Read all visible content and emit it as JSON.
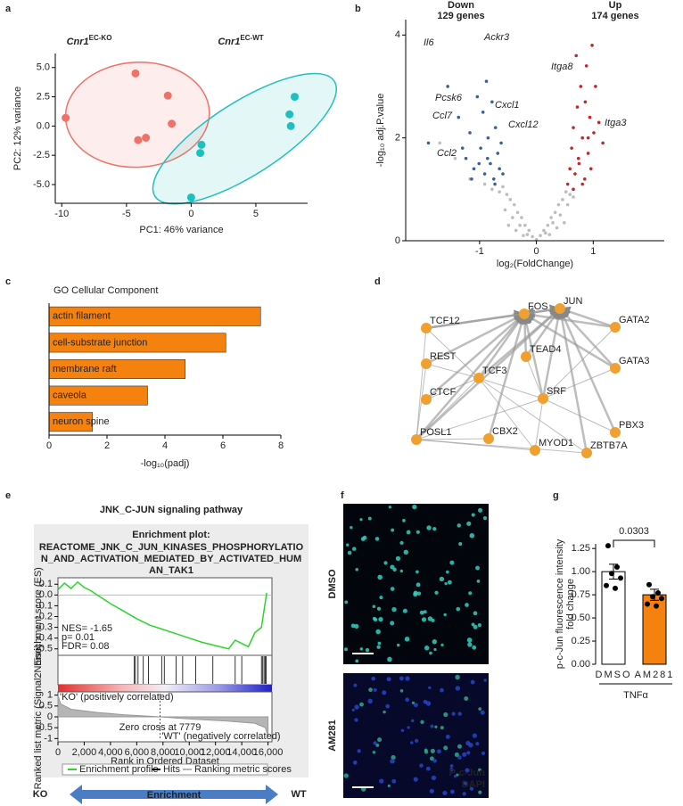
{
  "panel_labels": [
    "a",
    "b",
    "c",
    "d",
    "e",
    "f",
    "g"
  ],
  "chart_data": [
    {
      "type": "scatter",
      "xlabel": "PC1: 46% variance",
      "ylabel": "PC2: 12% variance",
      "xlim": [
        -10.5,
        9
      ],
      "ylim": [
        -6.6,
        6.2
      ],
      "xticks": [
        -10,
        -5,
        0,
        5
      ],
      "yticks": [
        {
          "value": -5,
          "label": "-5.0"
        },
        -2.5,
        {
          "value": 0,
          "label": "0.0"
        },
        2.5,
        {
          "value": 5,
          "label": "5.0"
        }
      ],
      "series": [
        {
          "name": "Cnr1",
          "superscript": "EC-KO",
          "color": "#f07167",
          "x": [
            -9.7,
            -4.3,
            -4.1,
            -3.5,
            -1.8,
            -1.5
          ],
          "values": [
            0.7,
            4.5,
            -1.2,
            -1.0,
            2.6,
            0.2
          ]
        },
        {
          "name": "Cnr1",
          "superscript": "EC-WT",
          "color": "#1fbfc0",
          "x": [
            0.8,
            0.7,
            0.0,
            7.6,
            7.7,
            8.0
          ],
          "values": [
            -1.6,
            -2.3,
            -6.1,
            1.0,
            0.0,
            2.5
          ]
        }
      ]
    },
    {
      "type": "volcano",
      "xlabel": "log₂(FoldChange)",
      "ylabel": "-log₁₀ adj.P.value",
      "xlim": [
        -2.3,
        2.25
      ],
      "ylim": [
        0,
        4.3
      ],
      "xticks": [
        -1,
        0,
        1
      ],
      "yticks": [
        0,
        2,
        4
      ],
      "series": [
        {
          "name": "Down",
          "count_label": "129 genes",
          "color": "#3b5fa0",
          "x": [
            -1.9,
            -1.56,
            -1.37,
            -1.24,
            -1.17,
            -1.1,
            -1.04,
            -0.98,
            -0.94,
            -0.91,
            -0.88,
            -0.85,
            -0.81,
            -0.78,
            -0.75,
            -0.72,
            -0.68,
            -0.65,
            -0.62,
            -0.59,
            -1.3,
            -1.14,
            -1.01,
            -0.86,
            -0.73
          ],
          "values": [
            1.9,
            3.0,
            2.4,
            1.6,
            2.1,
            1.4,
            2.8,
            1.8,
            2.5,
            1.3,
            3.1,
            2.0,
            1.5,
            2.7,
            1.2,
            2.2,
            1.7,
            1.4,
            1.9,
            1.3,
            1.8,
            1.2,
            1.5,
            1.6,
            1.1
          ]
        },
        {
          "name": "Up",
          "count_label": "174 genes",
          "color": "#c0282d",
          "x": [
            0.55,
            0.59,
            0.62,
            0.65,
            0.68,
            0.72,
            0.74,
            0.78,
            0.81,
            0.85,
            0.88,
            0.91,
            0.94,
            0.98,
            1.01,
            1.04,
            1.1,
            1.17,
            0.65,
            0.75,
            0.86,
            0.96,
            0.7,
            0.81,
            0.91
          ],
          "values": [
            1.1,
            1.4,
            1.8,
            2.2,
            1.3,
            2.6,
            1.6,
            3.0,
            2.0,
            1.2,
            3.4,
            1.7,
            2.4,
            3.8,
            2.1,
            3.0,
            2.3,
            1.9,
            1.0,
            1.5,
            2.7,
            1.4,
            3.6,
            1.1,
            2.0
          ]
        },
        {
          "color": "#bdbdbd",
          "x": [
            -1.7,
            -1.43,
            -1.17,
            -0.91,
            -0.78,
            -0.65,
            -0.59,
            -0.52,
            -0.46,
            -0.39,
            -0.33,
            -0.26,
            -0.2,
            -0.13,
            -0.07,
            0,
            0.07,
            0.13,
            0.2,
            0.26,
            0.33,
            0.39,
            0.46,
            0.52,
            0.59,
            0.65,
            -0.55,
            -0.42,
            -0.29,
            -0.16,
            0.16,
            0.29,
            0.42,
            0.55,
            -0.49,
            0.49,
            -0.36,
            0.36,
            -0.23,
            0.23
          ],
          "values": [
            1.9,
            1.6,
            1.2,
            1.1,
            1.0,
            0.95,
            1.05,
            0.9,
            0.8,
            0.7,
            0.55,
            0.45,
            0.3,
            0.2,
            0.08,
            0.02,
            0.1,
            0.2,
            0.3,
            0.45,
            0.55,
            0.7,
            0.8,
            0.95,
            0.9,
            0.85,
            0.6,
            0.45,
            0.3,
            0.12,
            0.15,
            0.35,
            0.5,
            0.7,
            0.3,
            0.35,
            0.2,
            0.25,
            0.1,
            0.12
          ]
        }
      ],
      "annotations": [
        "Il6",
        "Ackr3",
        "Pcsk6",
        "Cxcl1",
        "Ccl7",
        "Cxcl12",
        "Ccl2",
        "Itga8",
        "Itga3"
      ]
    },
    {
      "type": "hbar",
      "title": "GO Cellular Component",
      "xlabel": "-log₁₀(padj)",
      "color": "#f5820f",
      "categories": [
        "actin filament",
        "cell-substrate junction",
        "membrane raft",
        "caveola",
        "neuron spine"
      ],
      "values": [
        7.3,
        6.1,
        4.7,
        3.4,
        1.5
      ],
      "xlim": [
        0,
        8
      ],
      "xticks": [
        0,
        2,
        4,
        6,
        8
      ]
    },
    {
      "type": "network",
      "nodes": [
        "FOS",
        "JUN",
        "TCF12",
        "GATA2",
        "REST",
        "TEAD4",
        "TCF3",
        "GATA3",
        "CTCF",
        "SRF",
        "PBX3",
        "POSL1",
        "CBX2",
        "ZBTB7A",
        "MYOD1"
      ],
      "edges": [
        [
          0,
          1
        ],
        [
          0,
          2
        ],
        [
          0,
          3
        ],
        [
          0,
          4
        ],
        [
          0,
          5
        ],
        [
          0,
          6
        ],
        [
          0,
          7
        ],
        [
          0,
          8
        ],
        [
          0,
          9
        ],
        [
          0,
          11
        ],
        [
          0,
          12
        ],
        [
          1,
          2
        ],
        [
          1,
          3
        ],
        [
          1,
          5
        ],
        [
          1,
          6
        ],
        [
          1,
          7
        ],
        [
          1,
          9
        ],
        [
          1,
          10
        ],
        [
          1,
          11
        ],
        [
          1,
          13
        ],
        [
          2,
          11
        ],
        [
          2,
          6
        ],
        [
          4,
          6
        ],
        [
          4,
          11
        ],
        [
          8,
          6
        ],
        [
          6,
          9
        ],
        [
          6,
          13
        ],
        [
          6,
          14
        ],
        [
          6,
          11
        ],
        [
          5,
          9
        ],
        [
          3,
          9
        ],
        [
          7,
          9
        ],
        [
          9,
          11
        ],
        [
          9,
          14
        ],
        [
          12,
          11
        ],
        [
          10,
          9
        ],
        [
          11,
          14
        ],
        [
          11,
          13
        ]
      ]
    },
    {
      "type": "gsea",
      "title": "JNK_C-JUN signaling pathway",
      "plot_title": "Enrichment plot:",
      "plot_title_lines": [
        "REACTOME_JNK_C_JUN_KINASES_PHOSPHORYLATIO",
        "N_AND_ACTIVATION_MEDIATED_BY_ACTIVATED_HUM",
        "AN_TAK1"
      ],
      "stats": [
        "NES= -1.65",
        "p= 0.01",
        "FDR= 0.08"
      ],
      "ylabel": "Enrichment score (ES)",
      "y2label": "Ranked list metric (Signal2Noise)",
      "xlabel": "Rank in Ordered Dataset",
      "ko_label": "'KO' (positively correlated)",
      "wt_label": "'WT' (negatively correlated)",
      "zero_cross": "Zero cross at 7779",
      "legend": [
        "Enrichment profile",
        "Hits",
        "Ranking metric scores"
      ],
      "direction": {
        "left": "KO",
        "center": "Enrichment",
        "right": "WT"
      },
      "xlim": [
        0,
        16300
      ],
      "xticks": [
        0,
        {
          "value": 2000,
          "label": "2,000"
        },
        {
          "value": 4000,
          "label": "4,000"
        },
        {
          "value": 6000,
          "label": "6,000"
        },
        {
          "value": 8000,
          "label": "8,000"
        },
        {
          "value": 10000,
          "label": "10,000"
        },
        {
          "value": 12000,
          "label": "12,000"
        },
        {
          "value": 14000,
          "label": "14,000"
        },
        {
          "value": 16000,
          "label": "16,000"
        }
      ],
      "ylim": [
        -0.56,
        0.16
      ],
      "yticks": [
        0.1,
        {
          "value": 0,
          "label": "0.0"
        },
        -0.1,
        -0.2,
        -0.3,
        -0.4,
        -0.5
      ],
      "y2lim": [
        -1.15,
        1.15
      ],
      "y2ticks": [
        1,
        0.5,
        0,
        -0.5,
        -1
      ],
      "es_x": [
        0,
        500,
        1000,
        1500,
        2000,
        2500,
        3000,
        4000,
        5000,
        6000,
        7000,
        8000,
        9000,
        10000,
        11000,
        12000,
        13000,
        13500,
        14500,
        15000,
        15500,
        15900
      ],
      "es": [
        0.05,
        0.11,
        0.06,
        0.12,
        0.07,
        0.04,
        0.0,
        -0.08,
        -0.15,
        -0.22,
        -0.28,
        -0.32,
        -0.36,
        -0.4,
        -0.44,
        -0.47,
        -0.5,
        -0.42,
        -0.48,
        -0.35,
        -0.3,
        0.02
      ],
      "hits": [
        5800,
        5900,
        6100,
        6500,
        6900,
        7900,
        8100,
        9000,
        9500,
        10500,
        11800,
        13500,
        14000,
        15500,
        15600,
        15700,
        15800,
        15850
      ],
      "metric_x": [
        0,
        200,
        1000,
        3000,
        5000,
        7779,
        10000,
        13000,
        15000,
        15800,
        16000
      ],
      "metric": [
        1.0,
        0.6,
        0.35,
        0.2,
        0.1,
        0,
        -0.1,
        -0.2,
        -0.3,
        -0.5,
        -0.9
      ]
    },
    {
      "type": "image",
      "panels": [
        "DMSO",
        "AM281"
      ],
      "legend": [
        "P-c-Jun",
        "DAPI"
      ]
    },
    {
      "type": "bar",
      "categories": [
        "DMSO",
        "AM281"
      ],
      "colors": [
        "#ffffff",
        "#f5820f"
      ],
      "values": [
        1.0,
        0.75
      ],
      "errors": [
        0.08,
        0.06
      ],
      "points": [
        [
          1.28,
          1.05,
          0.98,
          0.93,
          0.85,
          0.82
        ],
        [
          0.86,
          0.77,
          0.73,
          0.71,
          0.65,
          0.63
        ]
      ],
      "ylim": [
        0,
        1.3
      ],
      "yticks": [
        {
          "value": 0,
          "label": "0.00"
        },
        {
          "value": 0.25,
          "label": "0.25"
        },
        {
          "value": 0.5,
          "label": "0.50"
        },
        {
          "value": 0.75,
          "label": "0.75"
        },
        {
          "value": 1,
          "label": "1.00"
        },
        {
          "value": 1.25,
          "label": "1.25"
        }
      ],
      "ylabel_lines": [
        "p-c-Jun fluorescence intensity",
        "fold change"
      ],
      "xlabel": "TNFα",
      "annotation": "0.0303"
    }
  ]
}
